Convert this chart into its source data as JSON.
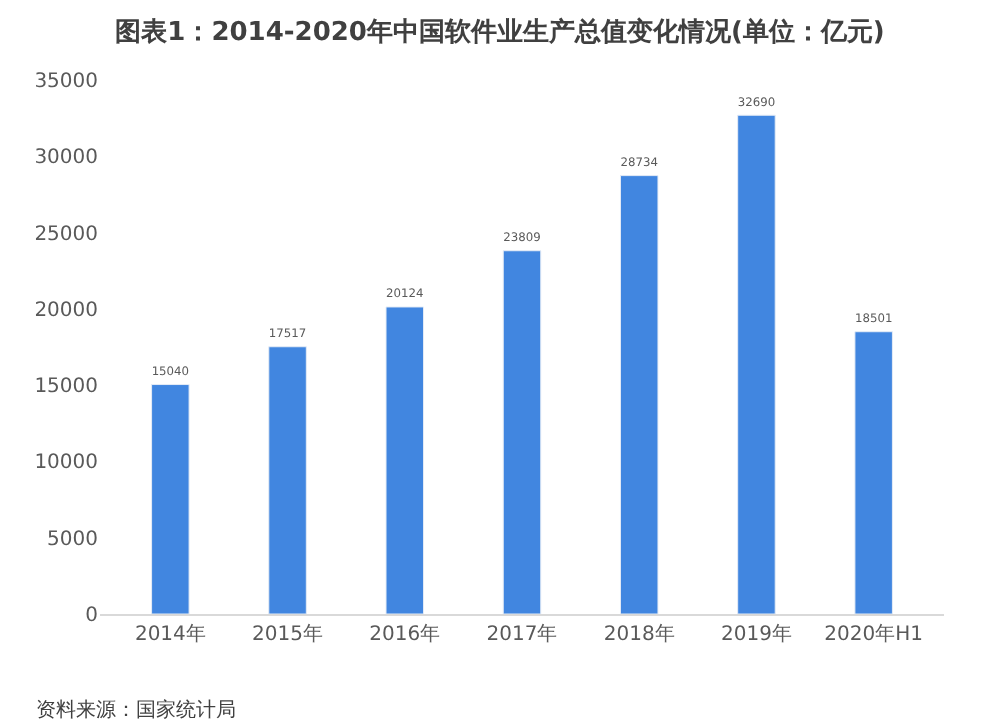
{
  "chart_data": {
    "type": "bar",
    "title": "图表1：2014-2020年中国软件业生产总值变化情况(单位：亿元)",
    "categories": [
      "2014年",
      "2015年",
      "2016年",
      "2017年",
      "2018年",
      "2019年",
      "2020年H1"
    ],
    "values": [
      15040,
      17517,
      20124,
      23809,
      28734,
      32690,
      18501
    ],
    "color": "#4186e0",
    "ylim": [
      0,
      35000
    ],
    "yticks": [
      0,
      5000,
      10000,
      15000,
      20000,
      25000,
      30000,
      35000
    ],
    "data_labels": true,
    "annotations": [
      "资料来源：国家统计局"
    ]
  }
}
